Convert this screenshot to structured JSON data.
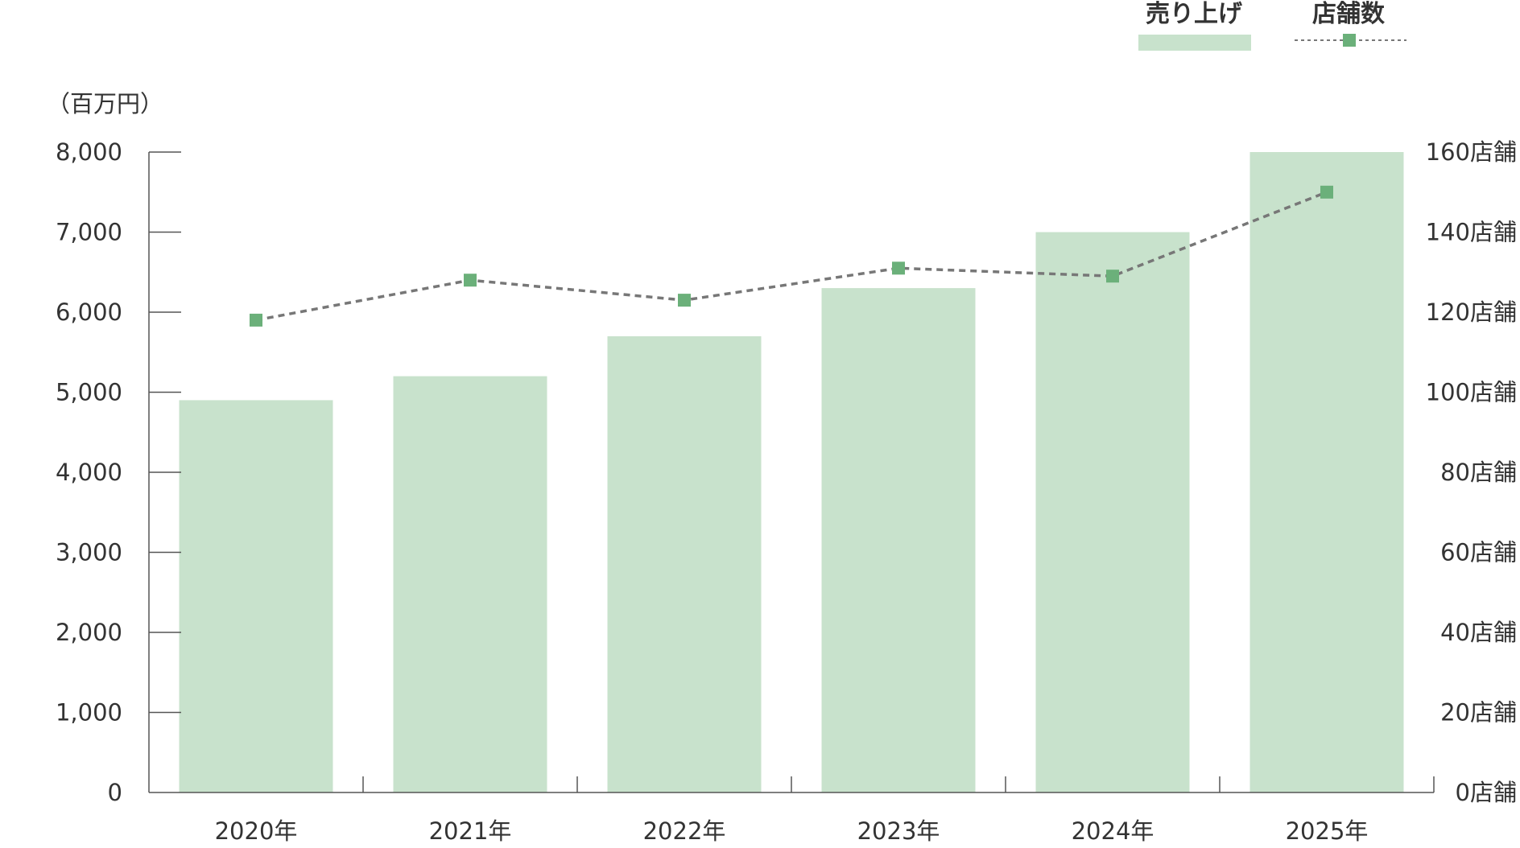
{
  "chart_data": {
    "type": "bar",
    "categories": [
      "2020年",
      "2021年",
      "2022年",
      "2023年",
      "2024年",
      "2025年"
    ],
    "series": [
      {
        "name": "売り上げ",
        "type": "bar",
        "axis": "left",
        "values": [
          4900,
          5200,
          5700,
          6300,
          7000,
          8000
        ]
      },
      {
        "name": "店舗数",
        "type": "line",
        "axis": "right",
        "values": [
          118,
          128,
          123,
          131,
          129,
          150
        ]
      }
    ],
    "y_left": {
      "unit_label": "（百万円）",
      "ylim": [
        0,
        8000
      ],
      "ticks": [
        "0",
        "1,000",
        "2,000",
        "3,000",
        "4,000",
        "5,000",
        "6,000",
        "7,000",
        "8,000"
      ]
    },
    "y_right": {
      "ylim": [
        0,
        160
      ],
      "ticks": [
        "0店舗",
        "20店舗",
        "40店舗",
        "60店舗",
        "80店舗",
        "100店舗",
        "120店舗",
        "140店舗",
        "160店舗"
      ]
    },
    "legend": {
      "placement": "top-right",
      "items": [
        "売り上げ",
        "店舗数"
      ]
    },
    "grid": false,
    "colors": {
      "bar": "#c8e2cc",
      "line": "#777777",
      "marker": "#6bb07a",
      "axis": "#555555"
    }
  }
}
